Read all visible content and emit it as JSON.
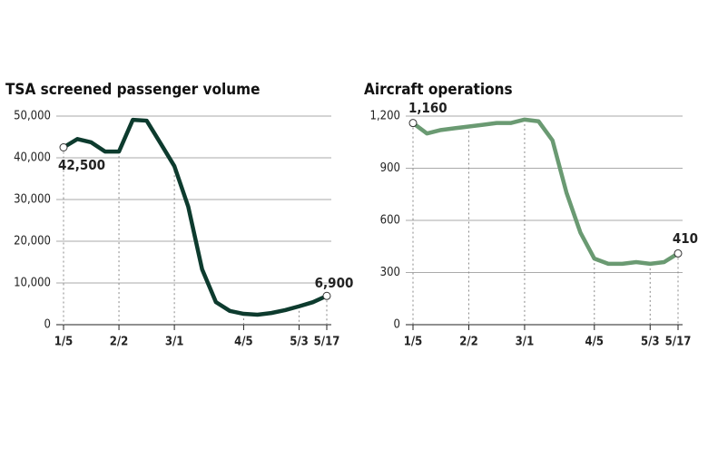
{
  "chart_data": [
    {
      "type": "line",
      "title": "TSA screened passenger volume",
      "categories": [
        "1/5",
        null,
        null,
        null,
        "2/2",
        null,
        null,
        null,
        "3/1",
        null,
        null,
        null,
        null,
        "4/5",
        null,
        null,
        null,
        "5/3",
        null,
        "5/17"
      ],
      "series": [
        {
          "color": "#0d3b2e",
          "values": [
            42500,
            44500,
            43700,
            41500,
            41500,
            49100,
            48900,
            43500,
            38000,
            28300,
            13300,
            5400,
            3300,
            2600,
            2400,
            2800,
            3500,
            4400,
            5400,
            6900
          ],
          "value_labels": [
            "42,500",
            null,
            null,
            null,
            null,
            null,
            null,
            null,
            null,
            null,
            null,
            null,
            null,
            null,
            null,
            null,
            null,
            null,
            null,
            "6,900"
          ]
        }
      ],
      "ylim": [
        0,
        50000
      ],
      "yticks": [
        0,
        {
          "value": 10000,
          "label": "10,000"
        },
        {
          "value": 20000,
          "label": "20,000"
        },
        {
          "value": 30000,
          "label": "30,000"
        },
        {
          "value": 40000,
          "label": "40,000"
        },
        {
          "value": 50000,
          "label": "50,000"
        }
      ],
      "grid": true
    },
    {
      "type": "line",
      "title": "Aircraft operations",
      "categories": [
        "1/5",
        null,
        null,
        null,
        "2/2",
        null,
        null,
        null,
        "3/1",
        null,
        null,
        null,
        null,
        "4/5",
        null,
        null,
        null,
        "5/3",
        null,
        "5/17"
      ],
      "series": [
        {
          "color": "#6a9a72",
          "values": [
            1160,
            1100,
            1120,
            1130,
            1140,
            1150,
            1160,
            1160,
            1180,
            1170,
            1060,
            760,
            530,
            380,
            350,
            350,
            360,
            350,
            360,
            410
          ],
          "value_labels": [
            "1,160",
            null,
            null,
            null,
            null,
            null,
            null,
            null,
            null,
            null,
            null,
            null,
            null,
            null,
            null,
            null,
            null,
            null,
            null,
            "410"
          ]
        }
      ],
      "ylim": [
        0,
        1200
      ],
      "yticks": [
        0,
        300,
        600,
        900,
        {
          "value": 1200,
          "label": "1,200"
        }
      ],
      "grid": true
    }
  ]
}
